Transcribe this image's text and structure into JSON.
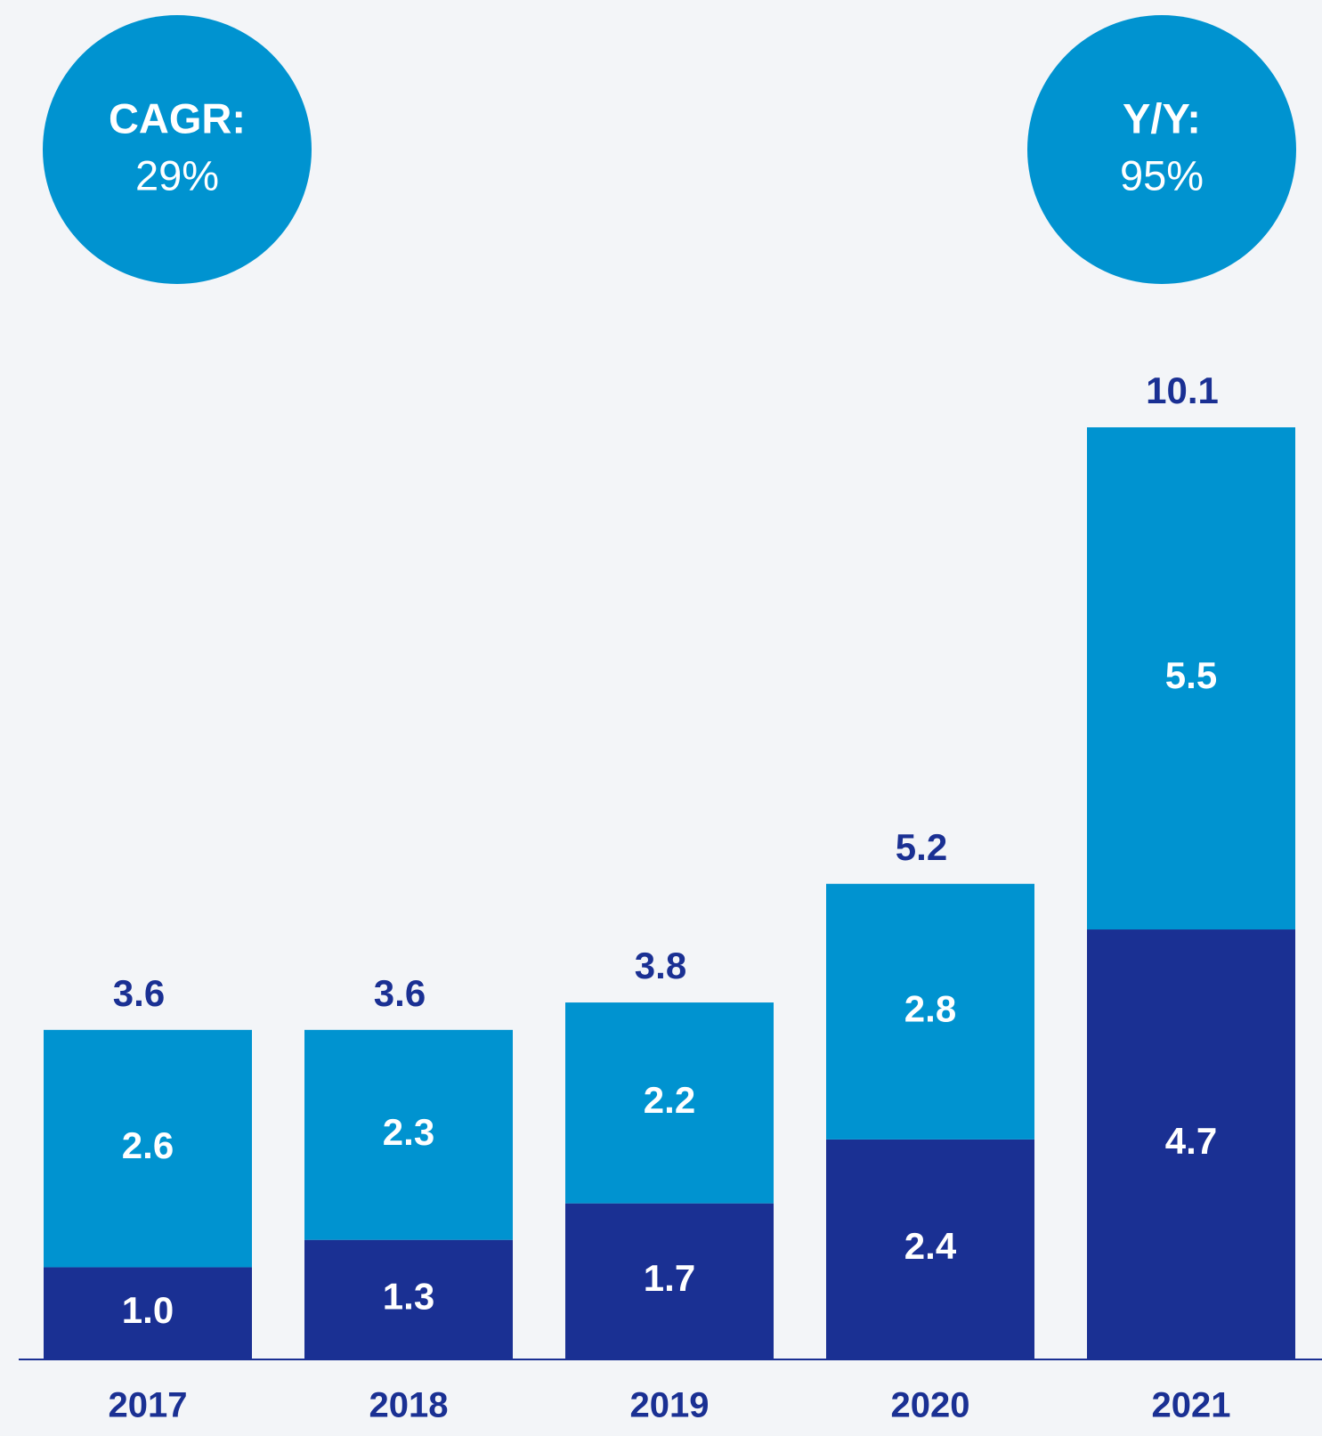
{
  "chart_data": {
    "type": "stacked_bar",
    "categories": [
      "2017",
      "2018",
      "2019",
      "2020",
      "2021"
    ],
    "series": [
      {
        "color": "#1a3093",
        "values": [
          1.0,
          1.3,
          1.7,
          2.4,
          4.7
        ]
      },
      {
        "color": "#0093d0",
        "values": [
          2.6,
          2.3,
          2.2,
          2.8,
          5.5
        ]
      }
    ],
    "value_labels": [
      [
        "1.0",
        "1.3",
        "1.7",
        "2.4",
        "4.7"
      ],
      [
        "2.6",
        "2.3",
        "2.2",
        "2.8",
        "5.5"
      ]
    ],
    "totals": [
      "3.6",
      "3.6",
      "3.8",
      "5.2",
      "10.1"
    ],
    "annotations": [
      {
        "label": "CAGR:",
        "text": "29%"
      },
      {
        "label": "Y/Y:",
        "text": "95%"
      }
    ]
  }
}
